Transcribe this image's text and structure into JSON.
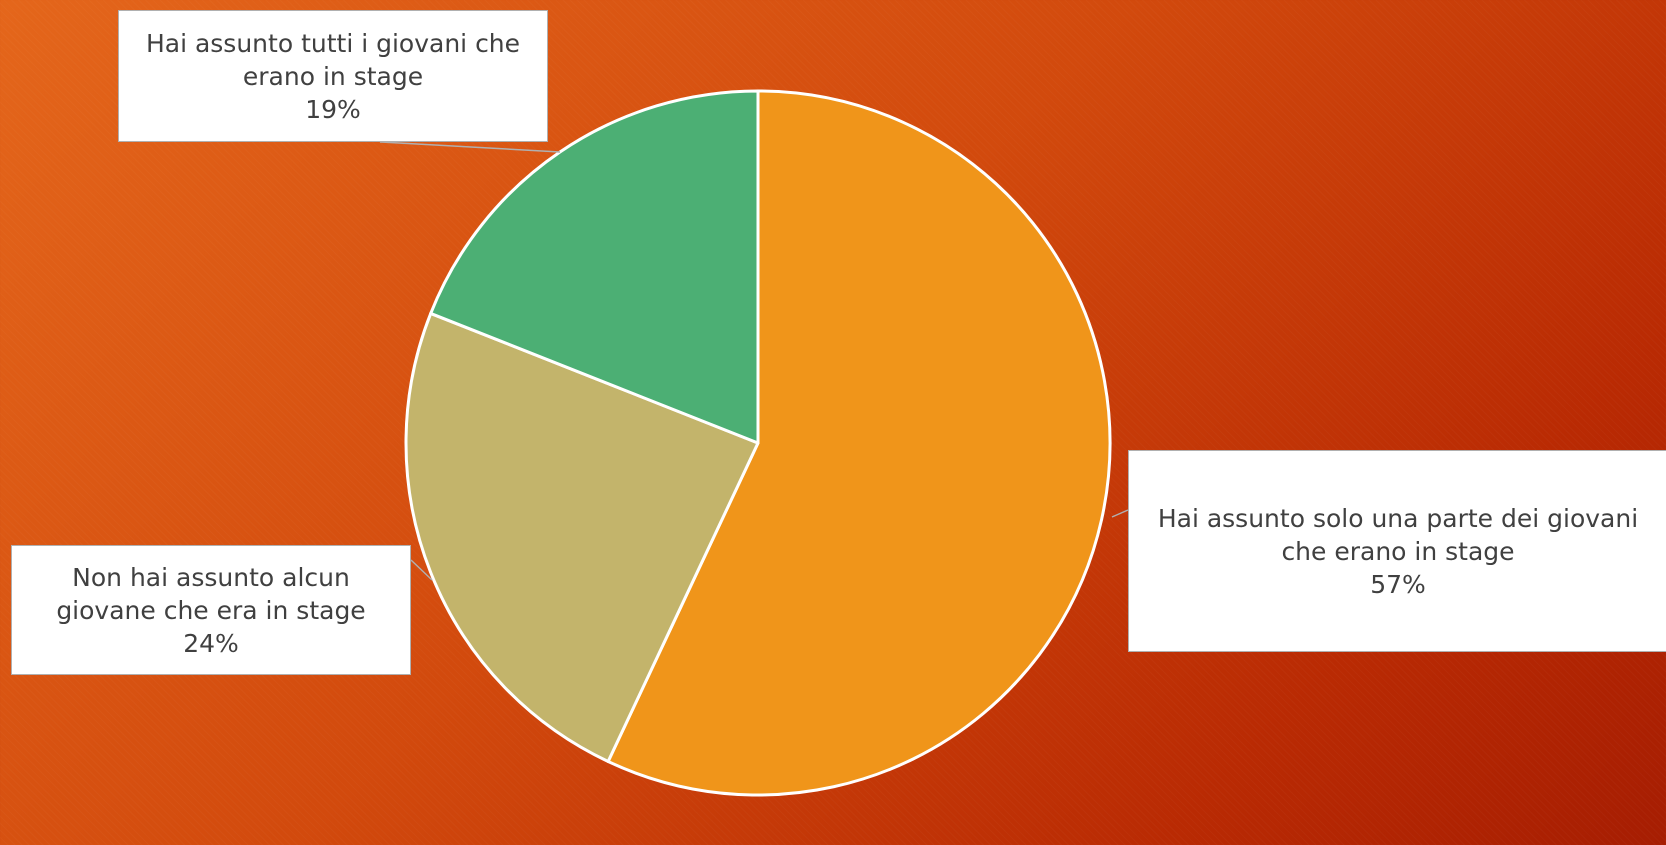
{
  "chart_data": {
    "type": "pie",
    "title": "",
    "slices": [
      {
        "label": "Hai assunto solo una parte dei giovani che erano in stage",
        "value": 57,
        "value_label": "57%",
        "color": "#f0951a"
      },
      {
        "label": "Non hai assunto alcun giovane che era in stage",
        "value": 24,
        "value_label": "24%",
        "color": "#c3b46b"
      },
      {
        "label": "Hai assunto tutti i giovani che erano in stage",
        "value": 19,
        "value_label": "19%",
        "color": "#4caf74"
      }
    ],
    "start_angle": "12 o'clock",
    "direction": "clockwise",
    "legend": "none",
    "slice_border_color": "#ffffff"
  }
}
